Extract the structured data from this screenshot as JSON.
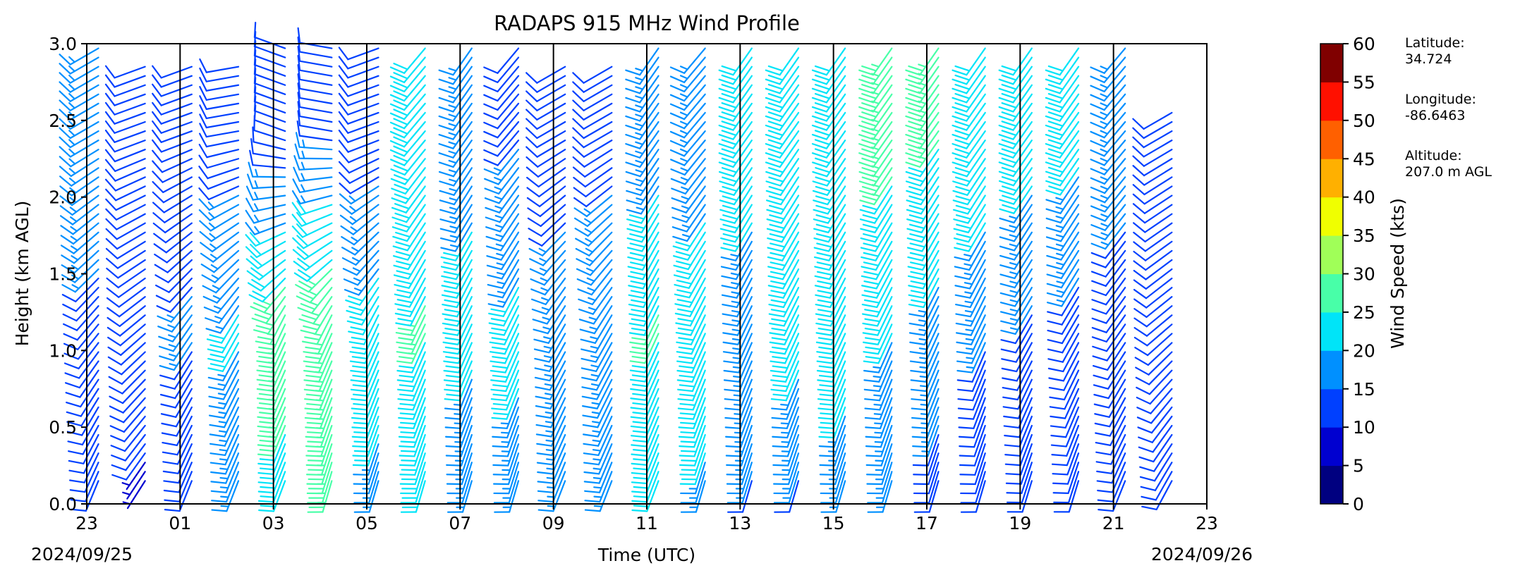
{
  "chart_data": {
    "type": "wind_barb_profile",
    "title": "RADAPS 915 MHz Wind Profile",
    "xlabel": "Time (UTC)",
    "ylabel": "Height (km AGL)",
    "x_range_hours": [
      0,
      24
    ],
    "x_ticks": [
      {
        "hour": 0,
        "label": "23"
      },
      {
        "hour": 2,
        "label": "01"
      },
      {
        "hour": 4,
        "label": "03"
      },
      {
        "hour": 6,
        "label": "05"
      },
      {
        "hour": 8,
        "label": "07"
      },
      {
        "hour": 10,
        "label": "09"
      },
      {
        "hour": 12,
        "label": "11"
      },
      {
        "hour": 14,
        "label": "13"
      },
      {
        "hour": 16,
        "label": "15"
      },
      {
        "hour": 18,
        "label": "17"
      },
      {
        "hour": 20,
        "label": "19"
      },
      {
        "hour": 22,
        "label": "21"
      },
      {
        "hour": 24,
        "label": "23"
      }
    ],
    "start_date": "2024/09/25",
    "end_date": "2024/09/26",
    "ylim": [
      0,
      3.0
    ],
    "y_ticks": [
      "0.0",
      "0.5",
      "1.0",
      "1.5",
      "2.0",
      "2.5",
      "3.0"
    ],
    "vertical_gridlines_hours": [
      2,
      4,
      6,
      8,
      10,
      12,
      14,
      16,
      18,
      20,
      22
    ],
    "colorbar": {
      "label": "Wind Speed (kts)",
      "ticks": [
        "0",
        "5",
        "10",
        "15",
        "20",
        "25",
        "30",
        "35",
        "40",
        "45",
        "50",
        "55",
        "60"
      ],
      "colors": [
        "#000080",
        "#0000d0",
        "#0040ff",
        "#0090ff",
        "#00e4f8",
        "#48ffa8",
        "#a0ff58",
        "#f0ff00",
        "#ffb000",
        "#ff6000",
        "#ff1000",
        "#800000"
      ]
    },
    "profiles": [
      {
        "hour": 0.0,
        "height_range": [
          0.15,
          3.0
        ],
        "speed_low": 11,
        "speed_mid": 13,
        "speed_high": 19,
        "dir_low": 200,
        "dir_mid": 220,
        "dir_high": 240
      },
      {
        "hour": 1.0,
        "height_range": [
          0.15,
          2.9
        ],
        "speed_low": 9,
        "speed_mid": 11,
        "speed_high": 12,
        "dir_low": 210,
        "dir_mid": 230,
        "dir_high": 250
      },
      {
        "hour": 2.0,
        "height_range": [
          0.15,
          2.9
        ],
        "speed_low": 11,
        "speed_mid": 15,
        "speed_high": 12,
        "dir_low": 200,
        "dir_mid": 215,
        "dir_high": 250
      },
      {
        "hour": 3.0,
        "height_range": [
          0.15,
          2.9
        ],
        "speed_low": 16,
        "speed_mid": 20,
        "speed_high": 12,
        "dir_low": 200,
        "dir_mid": 210,
        "dir_high": 260
      },
      {
        "hour": 4.0,
        "height_range": [
          0.15,
          3.0
        ],
        "speed_low": 22,
        "speed_mid": 28,
        "speed_high": 11,
        "dir_low": 200,
        "dir_mid": 205,
        "dir_high": 290
      },
      {
        "hour": 5.0,
        "height_range": [
          0.15,
          3.0
        ],
        "speed_low": 24,
        "speed_mid": 29,
        "speed_high": 14,
        "dir_low": 195,
        "dir_mid": 205,
        "dir_high": 280
      },
      {
        "hour": 6.0,
        "height_range": [
          0.15,
          3.0
        ],
        "speed_low": 18,
        "speed_mid": 22,
        "speed_high": 12,
        "dir_low": 195,
        "dir_mid": 205,
        "dir_high": 250
      },
      {
        "hour": 7.0,
        "height_range": [
          0.15,
          3.0
        ],
        "speed_low": 19,
        "speed_mid": 25,
        "speed_high": 20,
        "dir_low": 195,
        "dir_mid": 205,
        "dir_high": 220
      },
      {
        "hour": 8.0,
        "height_range": [
          0.15,
          3.0
        ],
        "speed_low": 16,
        "speed_mid": 21,
        "speed_high": 18,
        "dir_low": 195,
        "dir_mid": 205,
        "dir_high": 215
      },
      {
        "hour": 9.0,
        "height_range": [
          0.15,
          3.0
        ],
        "speed_low": 17,
        "speed_mid": 21,
        "speed_high": 14,
        "dir_low": 195,
        "dir_mid": 205,
        "dir_high": 220
      },
      {
        "hour": 10.0,
        "height_range": [
          0.15,
          2.9
        ],
        "speed_low": 15,
        "speed_mid": 18,
        "speed_high": 11,
        "dir_low": 200,
        "dir_mid": 210,
        "dir_high": 240
      },
      {
        "hour": 11.0,
        "height_range": [
          0.15,
          2.9
        ],
        "speed_low": 15,
        "speed_mid": 18,
        "speed_high": 13,
        "dir_low": 200,
        "dir_mid": 210,
        "dir_high": 240
      },
      {
        "hour": 12.0,
        "height_range": [
          0.15,
          3.0
        ],
        "speed_low": 19,
        "speed_mid": 25,
        "speed_high": 17,
        "dir_low": 200,
        "dir_mid": 205,
        "dir_high": 215
      },
      {
        "hour": 13.0,
        "height_range": [
          0.15,
          3.0
        ],
        "speed_low": 18,
        "speed_mid": 24,
        "speed_high": 16,
        "dir_low": 195,
        "dir_mid": 205,
        "dir_high": 220
      },
      {
        "hour": 14.0,
        "height_range": [
          0.15,
          3.0
        ],
        "speed_low": 14,
        "speed_mid": 17,
        "speed_high": 22,
        "dir_low": 195,
        "dir_mid": 205,
        "dir_high": 215
      },
      {
        "hour": 15.0,
        "height_range": [
          0.15,
          3.0
        ],
        "speed_low": 13,
        "speed_mid": 22,
        "speed_high": 21,
        "dir_low": 195,
        "dir_mid": 205,
        "dir_high": 215
      },
      {
        "hour": 16.0,
        "height_range": [
          0.15,
          3.0
        ],
        "speed_low": 16,
        "speed_mid": 23,
        "speed_high": 23,
        "dir_low": 195,
        "dir_mid": 205,
        "dir_high": 215
      },
      {
        "hour": 17.0,
        "height_range": [
          0.15,
          3.0
        ],
        "speed_low": 14,
        "speed_mid": 20,
        "speed_high": 26,
        "dir_low": 195,
        "dir_mid": 205,
        "dir_high": 215
      },
      {
        "hour": 18.0,
        "height_range": [
          0.15,
          3.0
        ],
        "speed_low": 12,
        "speed_mid": 18,
        "speed_high": 25,
        "dir_low": 195,
        "dir_mid": 205,
        "dir_high": 215
      },
      {
        "hour": 19.0,
        "height_range": [
          0.15,
          3.0
        ],
        "speed_low": 12,
        "speed_mid": 15,
        "speed_high": 24,
        "dir_low": 195,
        "dir_mid": 205,
        "dir_high": 215
      },
      {
        "hour": 20.0,
        "height_range": [
          0.15,
          3.0
        ],
        "speed_low": 11,
        "speed_mid": 14,
        "speed_high": 22,
        "dir_low": 195,
        "dir_mid": 210,
        "dir_high": 215
      },
      {
        "hour": 21.0,
        "height_range": [
          0.15,
          3.0
        ],
        "speed_low": 10,
        "speed_mid": 13,
        "speed_high": 21,
        "dir_low": 195,
        "dir_mid": 210,
        "dir_high": 215
      },
      {
        "hour": 22.0,
        "height_range": [
          0.15,
          3.0
        ],
        "speed_low": 10,
        "speed_mid": 12,
        "speed_high": 17,
        "dir_low": 200,
        "dir_mid": 215,
        "dir_high": 220
      },
      {
        "hour": 23.0,
        "height_range": [
          0.15,
          2.6
        ],
        "speed_low": 11,
        "speed_mid": 10,
        "speed_high": 11,
        "dir_low": 205,
        "dir_mid": 230,
        "dir_high": 240
      }
    ]
  },
  "station": {
    "latitude_label": "Latitude:",
    "latitude_value": "34.724",
    "longitude_label": "Longitude:",
    "longitude_value": "-86.6463",
    "altitude_label": "Altitude:",
    "altitude_value": "207.0 m AGL"
  }
}
